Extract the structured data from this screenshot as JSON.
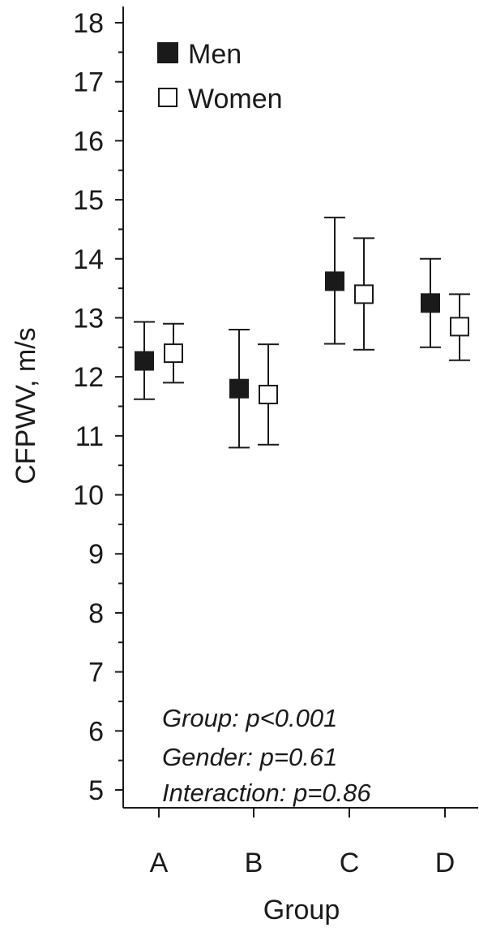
{
  "chart_data": {
    "type": "scatter",
    "xlabel": "Group",
    "ylabel": "CFPWV, m/s",
    "categories": [
      "A",
      "B",
      "C",
      "D"
    ],
    "ylim": [
      5,
      18
    ],
    "yticks": [
      5,
      6,
      7,
      8,
      9,
      10,
      11,
      12,
      13,
      14,
      15,
      16,
      17,
      18
    ],
    "ytick_labels": [
      "5",
      "6",
      "7",
      "8",
      "9",
      "10",
      "11",
      "12",
      "13",
      "14",
      "15",
      "16",
      "17",
      "18"
    ],
    "grid": false,
    "legend_position": "top-left",
    "series": [
      {
        "name": "Men",
        "marker": "filled-square",
        "color": "#1a1a1a",
        "values": [
          12.27,
          11.8,
          13.62,
          13.25
        ],
        "error_low": [
          11.62,
          10.8,
          12.56,
          12.5
        ],
        "error_high": [
          12.93,
          12.8,
          14.7,
          14.0
        ]
      },
      {
        "name": "Women",
        "marker": "open-square",
        "color": "#1a1a1a",
        "values": [
          12.4,
          11.7,
          13.4,
          12.85
        ],
        "error_low": [
          11.9,
          10.85,
          12.46,
          12.28
        ],
        "error_high": [
          12.9,
          12.55,
          14.35,
          13.4
        ]
      }
    ],
    "annotations": [
      "Group: p<0.001",
      "Gender: p=0.61",
      "Interaction: p=0.86"
    ]
  }
}
